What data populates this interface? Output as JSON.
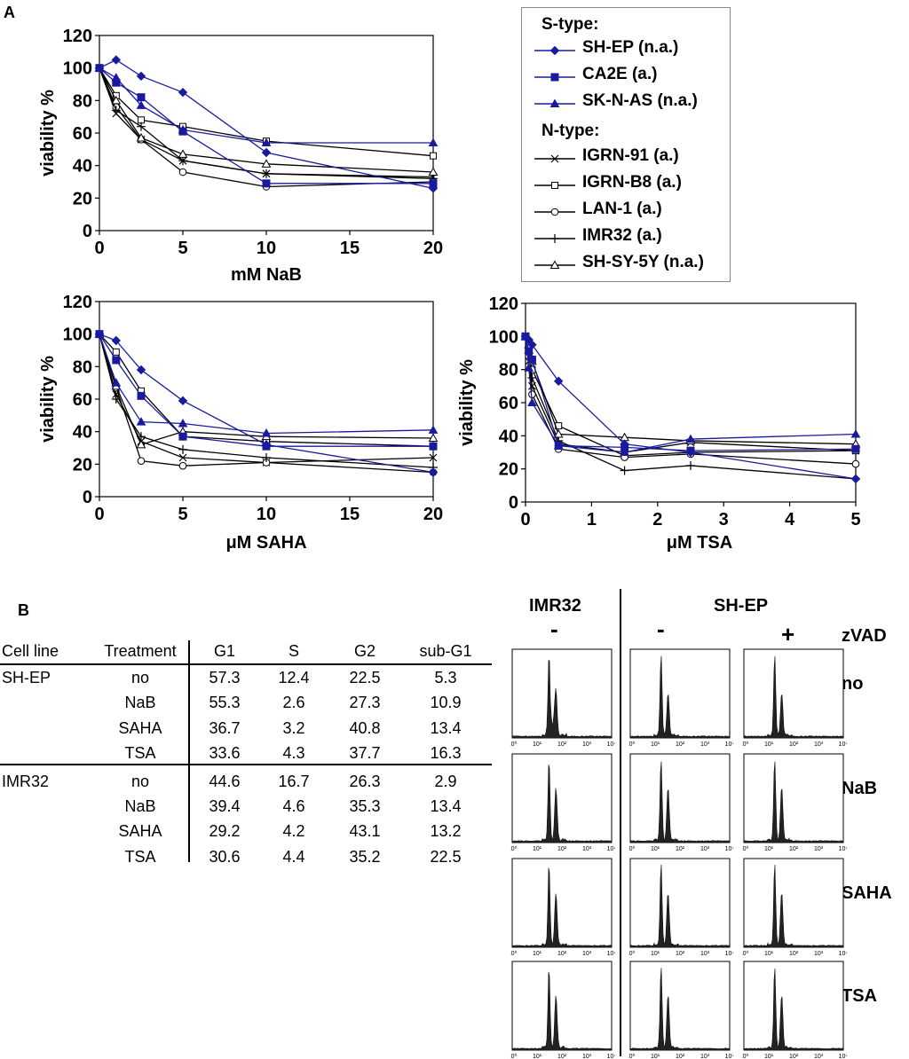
{
  "panel_a_label": "A",
  "panel_b_label": "B",
  "chart_data": [
    {
      "type": "line",
      "xlabel": "mM NaB",
      "ylabel": "viability %",
      "xlim": [
        0,
        20
      ],
      "ylim": [
        0,
        120
      ],
      "xticks": [
        "0",
        "5",
        "10",
        "15",
        "20"
      ],
      "yticks": [
        "0",
        "20",
        "40",
        "60",
        "80",
        "100",
        "120"
      ],
      "x": [
        0,
        1,
        2.5,
        5,
        10,
        20
      ],
      "series": [
        {
          "name": "SH-EP (n.a.)",
          "marker": "diamond",
          "color": "#1a1a9e",
          "values": [
            100,
            105,
            95,
            85,
            48,
            26
          ]
        },
        {
          "name": "CA2E (a.)",
          "marker": "square-filled",
          "color": "#1a1a9e",
          "values": [
            100,
            91,
            82,
            61,
            29,
            29
          ]
        },
        {
          "name": "SK-N-AS (n.a.)",
          "marker": "triangle-filled",
          "color": "#1a1a9e",
          "values": [
            100,
            94,
            77,
            62,
            54,
            54
          ]
        },
        {
          "name": "IGRN-91 (a.)",
          "marker": "x",
          "color": "#000000",
          "values": [
            100,
            72,
            56,
            43,
            35,
            33
          ]
        },
        {
          "name": "IGRN-B8 (a.)",
          "marker": "square-open",
          "color": "#000000",
          "values": [
            100,
            83,
            68,
            64,
            55,
            46
          ]
        },
        {
          "name": "LAN-1 (a.)",
          "marker": "circle-open",
          "color": "#000000",
          "values": [
            100,
            76,
            56,
            36,
            27,
            30
          ]
        },
        {
          "name": "IMR32 (a.)",
          "marker": "plus",
          "color": "#000000",
          "values": [
            100,
            74,
            64,
            43,
            35,
            32
          ]
        },
        {
          "name": "SH-SY-5Y (n.a.)",
          "marker": "triangle-open",
          "color": "#000000",
          "values": [
            100,
            80,
            57,
            47,
            41,
            36
          ]
        }
      ]
    },
    {
      "type": "line",
      "xlabel": "μM SAHA",
      "ylabel": "viability %",
      "xlim": [
        0,
        20
      ],
      "ylim": [
        0,
        120
      ],
      "xticks": [
        "0",
        "5",
        "10",
        "15",
        "20"
      ],
      "yticks": [
        "0",
        "20",
        "40",
        "60",
        "80",
        "100",
        "120"
      ],
      "x": [
        0,
        1,
        2.5,
        5,
        10,
        20
      ],
      "series": [
        {
          "name": "SH-EP (n.a.)",
          "marker": "diamond",
          "color": "#1a1a9e",
          "values": [
            100,
            96,
            78,
            59,
            32,
            15
          ]
        },
        {
          "name": "CA2E (a.)",
          "marker": "square-filled",
          "color": "#1a1a9e",
          "values": [
            100,
            84,
            62,
            37,
            31,
            31
          ]
        },
        {
          "name": "SK-N-AS (n.a.)",
          "marker": "triangle-filled",
          "color": "#1a1a9e",
          "values": [
            100,
            70,
            46,
            45,
            39,
            41
          ]
        },
        {
          "name": "IGRN-91 (a.)",
          "marker": "x",
          "color": "#000000",
          "values": [
            100,
            63,
            34,
            24,
            21,
            24
          ]
        },
        {
          "name": "IGRN-B8 (a.)",
          "marker": "square-open",
          "color": "#000000",
          "values": [
            100,
            89,
            65,
            37,
            34,
            31
          ]
        },
        {
          "name": "LAN-1 (a.)",
          "marker": "circle-open",
          "color": "#000000",
          "values": [
            100,
            67,
            22,
            19,
            21,
            15
          ]
        },
        {
          "name": "IMR32 (a.)",
          "marker": "plus",
          "color": "#000000",
          "values": [
            100,
            60,
            37,
            29,
            24,
            18
          ]
        },
        {
          "name": "SH-SY-5Y (n.a.)",
          "marker": "triangle-open",
          "color": "#000000",
          "values": [
            100,
            68,
            32,
            40,
            37,
            36
          ]
        }
      ]
    },
    {
      "type": "line",
      "xlabel": "μM TSA",
      "ylabel": "viability %",
      "xlim": [
        0,
        5
      ],
      "ylim": [
        0,
        120
      ],
      "xticks": [
        "0",
        "1",
        "2",
        "3",
        "4",
        "5"
      ],
      "yticks": [
        "0",
        "20",
        "40",
        "60",
        "80",
        "100",
        "120"
      ],
      "x": [
        0,
        0.05,
        0.1,
        0.5,
        1.5,
        2.5,
        5
      ],
      "series": [
        {
          "name": "SH-EP (n.a.)",
          "marker": "diamond",
          "color": "#1a1a9e",
          "values": [
            100,
            98,
            95,
            73,
            35,
            30,
            14
          ]
        },
        {
          "name": "CA2E (a.)",
          "marker": "square-filled",
          "color": "#1a1a9e",
          "values": [
            100,
            91,
            86,
            34,
            33,
            31,
            32
          ]
        },
        {
          "name": "SK-N-AS (n.a.)",
          "marker": "triangle-filled",
          "color": "#1a1a9e",
          "values": [
            100,
            81,
            60,
            34,
            30,
            38,
            41
          ]
        },
        {
          "name": "IGRN-91 (a.)",
          "marker": "x",
          "color": "#000000",
          "values": [
            100,
            85,
            70,
            35,
            30,
            36,
            31
          ]
        },
        {
          "name": "IGRN-B8 (a.)",
          "marker": "square-open",
          "color": "#000000",
          "values": [
            100,
            93,
            80,
            46,
            28,
            30,
            31
          ]
        },
        {
          "name": "LAN-1 (a.)",
          "marker": "circle-open",
          "color": "#000000",
          "values": [
            100,
            88,
            65,
            32,
            27,
            29,
            23
          ]
        },
        {
          "name": "IMR32 (a.)",
          "marker": "plus",
          "color": "#000000",
          "values": [
            100,
            90,
            75,
            37,
            19,
            22,
            14
          ]
        },
        {
          "name": "SH-SY-5Y (n.a.)",
          "marker": "triangle-open",
          "color": "#000000",
          "values": [
            100,
            95,
            85,
            41,
            39,
            37,
            35
          ]
        }
      ]
    }
  ],
  "legend": {
    "s_type_heading": "S-type:",
    "n_type_heading": "N-type:",
    "s_type": [
      {
        "label": "SH-EP (n.a.)",
        "marker": "diamond",
        "color": "#1a1a9e"
      },
      {
        "label": "CA2E (a.)",
        "marker": "square-filled",
        "color": "#1a1a9e"
      },
      {
        "label": "SK-N-AS (n.a.)",
        "marker": "triangle-filled",
        "color": "#1a1a9e"
      }
    ],
    "n_type": [
      {
        "label": "IGRN-91 (a.)",
        "marker": "x",
        "color": "#000000"
      },
      {
        "label": "IGRN-B8 (a.)",
        "marker": "square-open",
        "color": "#000000"
      },
      {
        "label": "LAN-1 (a.)",
        "marker": "circle-open",
        "color": "#000000"
      },
      {
        "label": "IMR32 (a.)",
        "marker": "plus",
        "color": "#000000"
      },
      {
        "label": "SH-SY-5Y (n.a.)",
        "marker": "triangle-open",
        "color": "#000000"
      }
    ]
  },
  "table": {
    "headers": [
      "Cell line",
      "Treatment",
      "G1",
      "S",
      "G2",
      "sub-G1"
    ],
    "rows": [
      [
        "SH-EP",
        "no",
        "57.3",
        "12.4",
        "22.5",
        "5.3"
      ],
      [
        "",
        "NaB",
        "55.3",
        "2.6",
        "27.3",
        "10.9"
      ],
      [
        "",
        "SAHA",
        "36.7",
        "3.2",
        "40.8",
        "13.4"
      ],
      [
        "",
        "TSA",
        "33.6",
        "4.3",
        "37.7",
        "16.3"
      ],
      [
        "IMR32",
        "no",
        "44.6",
        "16.7",
        "26.3",
        "2.9"
      ],
      [
        "",
        "NaB",
        "39.4",
        "4.6",
        "35.3",
        "13.4"
      ],
      [
        "",
        "SAHA",
        "29.2",
        "4.2",
        "43.1",
        "13.2"
      ],
      [
        "",
        "TSA",
        "30.6",
        "4.4",
        "35.2",
        "22.5"
      ]
    ]
  },
  "histograms": {
    "col_headers": [
      "IMR32",
      "SH-EP"
    ],
    "zvad_label": "zVAD",
    "zvad_signs": [
      "-",
      "-",
      "+"
    ],
    "row_labels": [
      "no",
      "NaB",
      "SAHA",
      "TSA"
    ],
    "x_tick_labels": [
      "10⁰",
      "10¹",
      "10²",
      "10³",
      "10⁴"
    ]
  }
}
